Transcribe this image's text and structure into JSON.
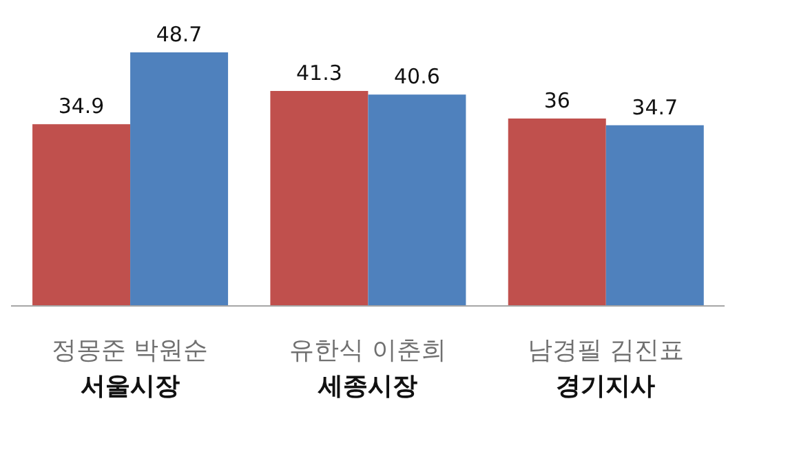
{
  "chart_data": {
    "type": "bar",
    "categories": [
      "서울시장",
      "세종시장",
      "경기지사"
    ],
    "series": [
      {
        "color": "#c0504d",
        "values": [
          34.9,
          41.3,
          36
        ]
      },
      {
        "color": "#4f81bd",
        "values": [
          48.7,
          40.6,
          34.7
        ]
      }
    ],
    "annotations": [
      "정몽준 박원순",
      "유한식 이춘희",
      "남경필 김진표"
    ],
    "data_labels": true,
    "tick_labels": "x",
    "grid": false,
    "legend": false
  }
}
